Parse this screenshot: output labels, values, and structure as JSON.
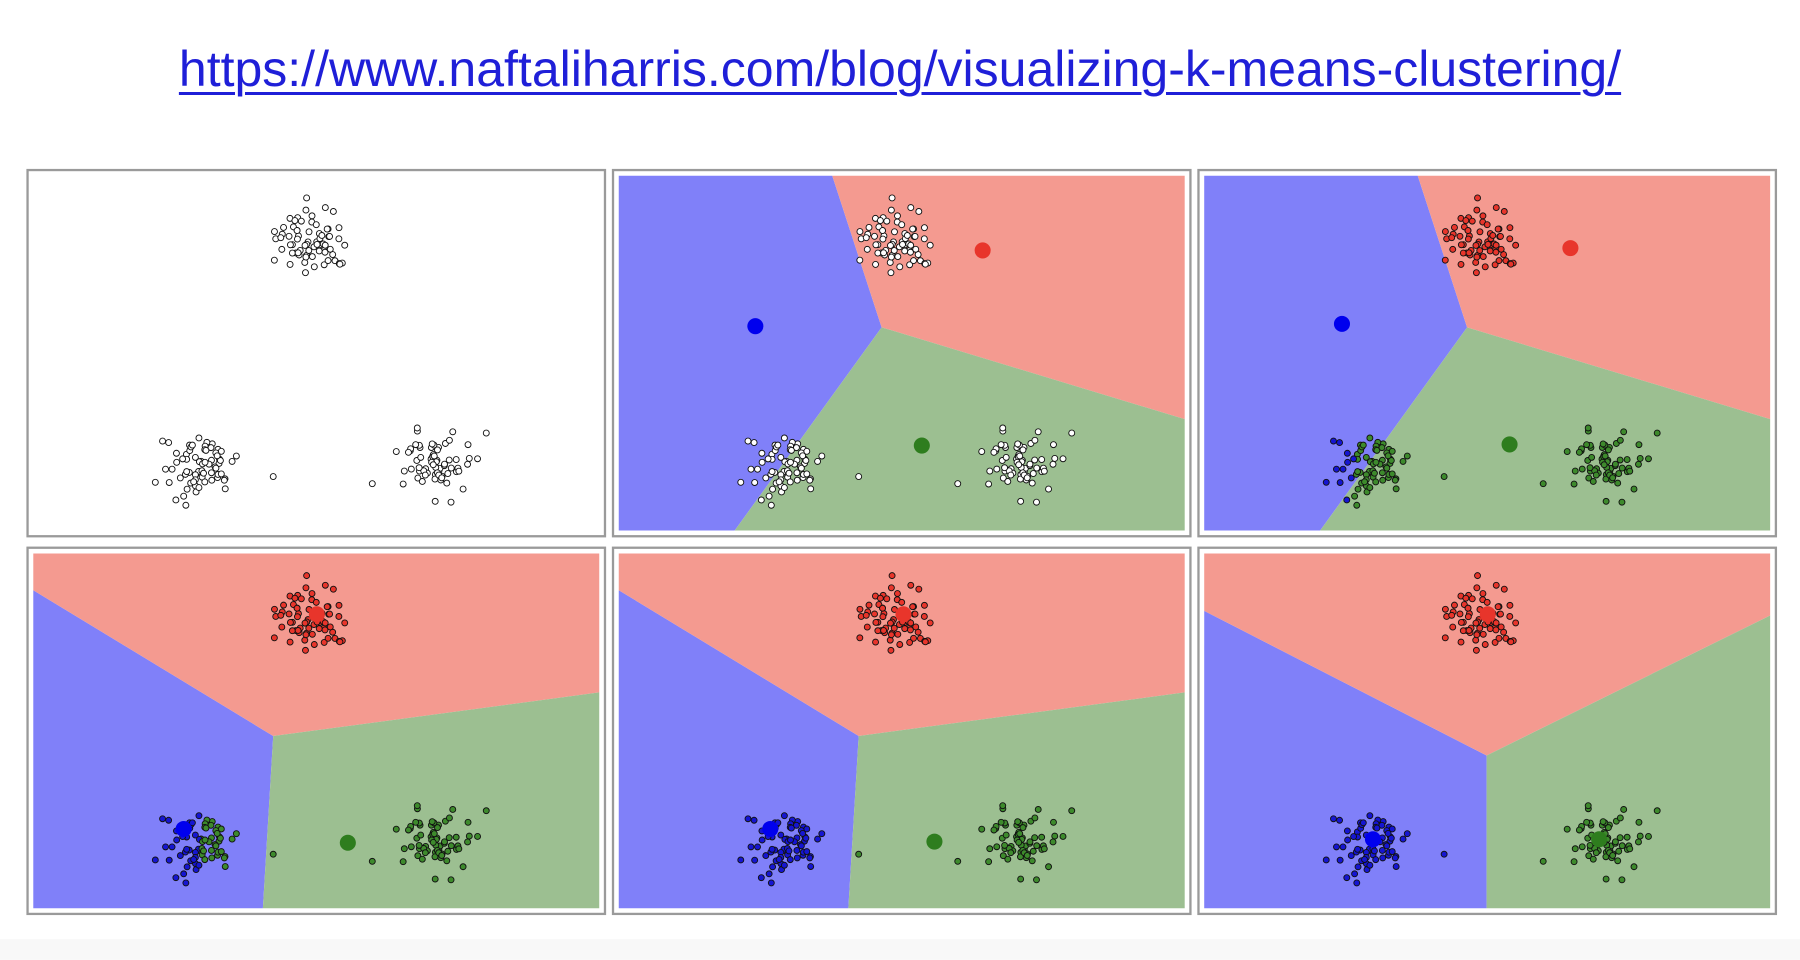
{
  "link": {
    "text": "https://www.naftaliharris.com/blog/visualizing-k-means-clustering/"
  }
}
